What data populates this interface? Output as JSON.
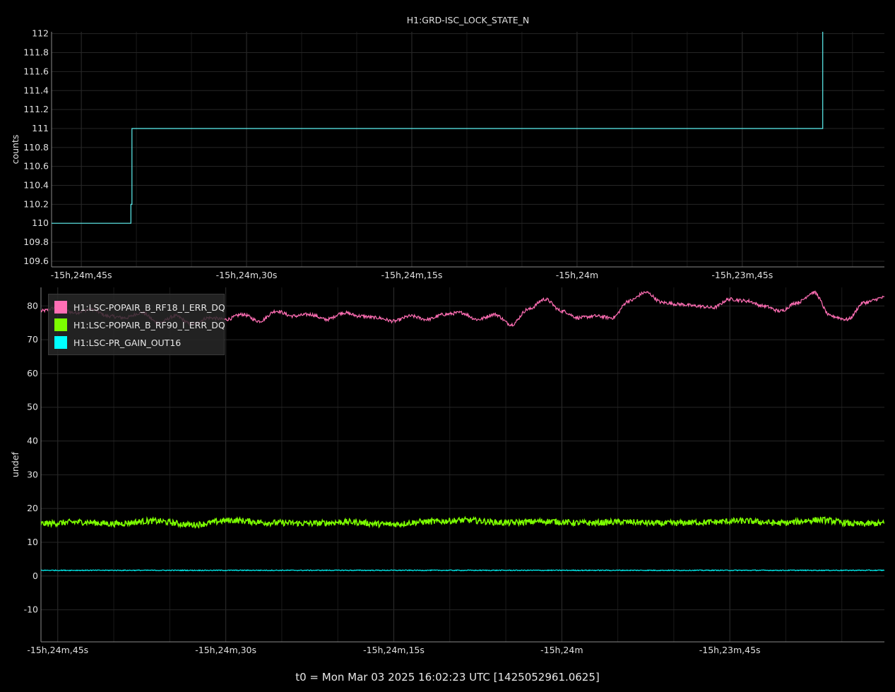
{
  "chart_data": [
    {
      "type": "line",
      "title": "H1:GRD-ISC_LOCK_STATE_N",
      "ylabel": "counts",
      "xlabel": "",
      "x_ticks": [
        "-15h,24m,45s",
        "-15h,24m,30s",
        "-15h,24m,15s",
        "-15h,24m",
        "-15h,23m,45s"
      ],
      "x_tick_seconds": [
        -885,
        -870,
        -855,
        -840,
        -825
      ],
      "xlim_seconds": [
        -887.7,
        -812.1
      ],
      "ylim": [
        109.54,
        112.02
      ],
      "y_ticks": [
        109.6,
        109.8,
        110,
        110.2,
        110.4,
        110.6,
        110.8,
        111,
        111.2,
        111.4,
        111.6,
        111.8,
        112
      ],
      "grid": true,
      "series": [
        {
          "color": "#5ef2f2",
          "step_points": [
            [
              -887.7,
              110
            ],
            [
              -880.5,
              110
            ],
            [
              -880.5,
              110.2
            ],
            [
              -880.4,
              110.2
            ],
            [
              -880.4,
              111
            ],
            [
              -817.7,
              111
            ],
            [
              -817.7,
              112.02
            ]
          ]
        }
      ]
    },
    {
      "type": "line",
      "title": "",
      "ylabel": "undef",
      "xlabel": "",
      "x_ticks": [
        "-15h,24m,45s",
        "-15h,24m,30s",
        "-15h,24m,15s",
        "-15h,24m",
        "-15h,23m,45s"
      ],
      "x_tick_seconds": [
        -885,
        -870,
        -855,
        -840,
        -825
      ],
      "xlim_seconds": [
        -886.5,
        -811.2
      ],
      "ylim": [
        -19.5,
        85.5
      ],
      "y_ticks": [
        -10,
        0,
        10,
        20,
        30,
        40,
        50,
        60,
        70,
        80
      ],
      "grid": true,
      "legend_position": "top-left",
      "series": [
        {
          "name": "H1:LSC-POPAIR_B_RF18_I_ERR_DQ",
          "color": "#ff6eb4",
          "x_seconds": [
            -886.5,
            -885,
            -883.5,
            -882,
            -880.5,
            -879,
            -877.5,
            -876,
            -874.5,
            -873,
            -871.5,
            -870,
            -868.5,
            -867,
            -865.5,
            -864,
            -862.5,
            -861,
            -859.5,
            -858,
            -856.5,
            -855,
            -853.5,
            -852,
            -850.5,
            -849,
            -847.5,
            -846,
            -844.5,
            -843,
            -841.5,
            -840,
            -838.5,
            -837,
            -835.5,
            -834,
            -832.5,
            -831,
            -829.5,
            -828,
            -826.5,
            -825,
            -823.5,
            -822,
            -820.5,
            -819,
            -817.5,
            -816,
            -814.5,
            -813,
            -811.2
          ],
          "values": [
            78.5,
            79.5,
            78,
            79,
            77,
            76.5,
            78,
            75,
            77,
            74.5,
            76.5,
            76,
            77.5,
            75.5,
            78.5,
            77,
            77.5,
            76,
            78,
            77,
            76.5,
            75.5,
            77,
            76,
            77.5,
            78,
            76,
            77.5,
            74.5,
            79,
            82,
            78.5,
            76.5,
            77,
            76.5,
            81.5,
            84,
            81,
            80.5,
            80,
            79.5,
            82,
            81.5,
            80,
            78.5,
            81,
            84,
            77,
            76,
            81,
            82.5
          ],
          "noise": 0.5
        },
        {
          "name": "H1:LSC-POPAIR_B_RF90_I_ERR_DQ",
          "color": "#7cfc00",
          "x_seconds": [
            -886.5,
            -883,
            -880,
            -876.5,
            -873,
            -869.5,
            -866,
            -862.5,
            -859,
            -855.5,
            -852,
            -848.5,
            -845,
            -841.5,
            -838,
            -834.5,
            -831,
            -827.5,
            -824,
            -820.5,
            -817,
            -813.5,
            -811.2
          ],
          "values": [
            15.5,
            16,
            15.5,
            16.3,
            15.2,
            16.5,
            15.8,
            15.6,
            16,
            15.3,
            16.1,
            16.5,
            15.8,
            16.2,
            15.7,
            16,
            15.6,
            15.9,
            16.3,
            15.7,
            16.6,
            15.4,
            15.6
          ],
          "noise": 0.9
        },
        {
          "name": "H1:LSC-PR_GAIN_OUT16",
          "color": "#00ffff",
          "x_seconds": [
            -886.5,
            -811.2
          ],
          "values": [
            1.7,
            1.7
          ],
          "noise": 0.12
        }
      ]
    }
  ],
  "footer": "t0 = Mon Mar 03 2025 16:02:23 UTC [1425052961.0625]"
}
